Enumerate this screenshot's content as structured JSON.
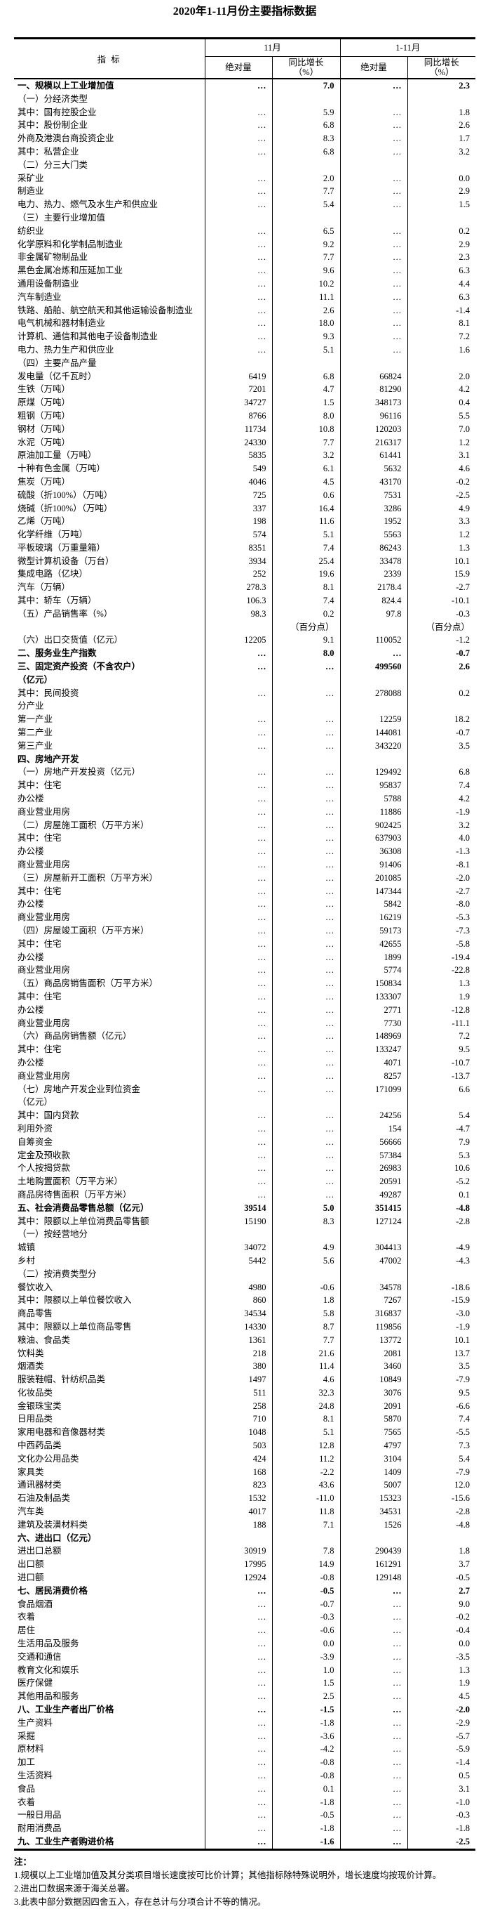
{
  "title": "2020年1-11月份主要指标数据",
  "table": {
    "header": {
      "indicator": "指  标",
      "periods": [
        "11月",
        "1-11月"
      ],
      "abs": "绝对量",
      "yoy": "同比增长\n（%）"
    },
    "rows": [
      {
        "l": "一、规模以上工业增加值",
        "v": [
          "…",
          "7.0",
          "…",
          "2.3"
        ],
        "b": 1
      },
      {
        "l": "（一）分经济类型",
        "v": [
          "",
          "",
          "",
          ""
        ]
      },
      {
        "l": "其中：国有控股企业",
        "v": [
          "…",
          "5.9",
          "…",
          "1.8"
        ]
      },
      {
        "l": "其中：股份制企业",
        "v": [
          "…",
          "6.8",
          "…",
          "2.6"
        ]
      },
      {
        "l": "外商及港澳台商投资企业",
        "v": [
          "…",
          "8.3",
          "…",
          "1.7"
        ],
        "i": 2
      },
      {
        "l": "其中：私营企业",
        "v": [
          "…",
          "6.8",
          "…",
          "3.2"
        ]
      },
      {
        "l": "（二）分三大门类",
        "v": [
          "",
          "",
          "",
          ""
        ]
      },
      {
        "l": "采矿业",
        "v": [
          "…",
          "2.0",
          "…",
          "0.0"
        ]
      },
      {
        "l": "制造业",
        "v": [
          "…",
          "7.7",
          "…",
          "2.9"
        ]
      },
      {
        "l": "电力、热力、燃气及水生产和供应业",
        "v": [
          "…",
          "5.4",
          "…",
          "1.5"
        ]
      },
      {
        "l": "（三）主要行业增加值",
        "v": [
          "",
          "",
          "",
          ""
        ]
      },
      {
        "l": "纺织业",
        "v": [
          "…",
          "6.5",
          "…",
          "0.2"
        ]
      },
      {
        "l": "化学原料和化学制品制造业",
        "v": [
          "…",
          "9.2",
          "…",
          "2.9"
        ]
      },
      {
        "l": "非金属矿物制品业",
        "v": [
          "…",
          "7.7",
          "…",
          "2.3"
        ]
      },
      {
        "l": "黑色金属冶炼和压延加工业",
        "v": [
          "…",
          "9.6",
          "…",
          "6.3"
        ]
      },
      {
        "l": "通用设备制造业",
        "v": [
          "…",
          "10.2",
          "…",
          "4.4"
        ]
      },
      {
        "l": "汽车制造业",
        "v": [
          "…",
          "11.1",
          "…",
          "6.3"
        ]
      },
      {
        "l": "铁路、船舶、航空航天和其他运输设备制造业",
        "v": [
          "…",
          "2.6",
          "…",
          "-1.4"
        ]
      },
      {
        "l": "电气机械和器材制造业",
        "v": [
          "…",
          "18.0",
          "…",
          "8.1"
        ]
      },
      {
        "l": "计算机、通信和其他电子设备制造业",
        "v": [
          "…",
          "9.3",
          "…",
          "7.2"
        ]
      },
      {
        "l": "电力、热力生产和供应业",
        "v": [
          "…",
          "5.1",
          "…",
          "1.6"
        ]
      },
      {
        "l": "（四）主要产品产量",
        "v": [
          "",
          "",
          "",
          ""
        ]
      },
      {
        "l": "发电量（亿千瓦时）",
        "v": [
          "6419",
          "6.8",
          "66824",
          "2.0"
        ]
      },
      {
        "l": "生铁（万吨）",
        "v": [
          "7201",
          "4.7",
          "81290",
          "4.2"
        ]
      },
      {
        "l": "原煤（万吨）",
        "v": [
          "34727",
          "1.5",
          "348173",
          "0.4"
        ]
      },
      {
        "l": "粗钢（万吨）",
        "v": [
          "8766",
          "8.0",
          "96116",
          "5.5"
        ]
      },
      {
        "l": "钢材（万吨）",
        "v": [
          "11734",
          "10.8",
          "120203",
          "7.0"
        ]
      },
      {
        "l": "水泥（万吨）",
        "v": [
          "24330",
          "7.7",
          "216317",
          "1.2"
        ]
      },
      {
        "l": "原油加工量（万吨）",
        "v": [
          "5835",
          "3.2",
          "61441",
          "3.1"
        ]
      },
      {
        "l": "十种有色金属（万吨）",
        "v": [
          "549",
          "6.1",
          "5632",
          "4.6"
        ]
      },
      {
        "l": "焦炭（万吨）",
        "v": [
          "4046",
          "4.5",
          "43170",
          "-0.2"
        ]
      },
      {
        "l": "硫酸（折100%）（万吨）",
        "v": [
          "725",
          "0.6",
          "7531",
          "-2.5"
        ]
      },
      {
        "l": "烧碱（折100%）（万吨）",
        "v": [
          "337",
          "16.4",
          "3286",
          "4.9"
        ]
      },
      {
        "l": "乙烯（万吨）",
        "v": [
          "198",
          "11.6",
          "1952",
          "3.3"
        ]
      },
      {
        "l": "化学纤维（万吨）",
        "v": [
          "574",
          "5.1",
          "5563",
          "1.2"
        ]
      },
      {
        "l": "平板玻璃（万重量箱）",
        "v": [
          "8351",
          "7.4",
          "86243",
          "1.3"
        ]
      },
      {
        "l": "微型计算机设备（万台）",
        "v": [
          "3934",
          "25.4",
          "33478",
          "10.1"
        ]
      },
      {
        "l": "集成电路（亿块）",
        "v": [
          "252",
          "19.6",
          "2339",
          "15.9"
        ]
      },
      {
        "l": "汽车（万辆）",
        "v": [
          "278.3",
          "8.1",
          "2178.4",
          "-2.7"
        ]
      },
      {
        "l": "其中：轿车（万辆）",
        "v": [
          "106.3",
          "7.4",
          "824.4",
          "-10.1"
        ]
      },
      {
        "l": "（五）产品销售率（%）",
        "v": [
          "98.3",
          "0.2\n（百分点）",
          "97.8",
          "-0.3\n（百分点）"
        ]
      },
      {
        "l": "（六）出口交货值（亿元）",
        "v": [
          "12205",
          "9.1",
          "110052",
          "-1.2"
        ]
      },
      {
        "l": "二、服务业生产指数",
        "v": [
          "…",
          "8.0",
          "…",
          "-0.7"
        ],
        "b": 1
      },
      {
        "l": "三、固定资产投资（不含农户）\n（亿元）",
        "v": [
          "…",
          "…",
          "499560",
          "2.6"
        ],
        "b": 1
      },
      {
        "l": "其中：民间投资",
        "v": [
          "…",
          "…",
          "278088",
          "0.2"
        ]
      },
      {
        "l": "分产业",
        "v": [
          "",
          "",
          "",
          ""
        ]
      },
      {
        "l": "第一产业",
        "v": [
          "…",
          "…",
          "12259",
          "18.2"
        ]
      },
      {
        "l": "第二产业",
        "v": [
          "…",
          "…",
          "144081",
          "-0.7"
        ]
      },
      {
        "l": "第三产业",
        "v": [
          "…",
          "…",
          "343220",
          "3.5"
        ]
      },
      {
        "l": "四、房地产开发",
        "v": [
          "",
          "",
          "",
          ""
        ],
        "b": 1
      },
      {
        "l": "（一）房地产开发投资（亿元）",
        "v": [
          "…",
          "…",
          "129492",
          "6.8"
        ]
      },
      {
        "l": "其中：住宅",
        "v": [
          "…",
          "…",
          "95837",
          "7.4"
        ]
      },
      {
        "l": "办公楼",
        "v": [
          "…",
          "…",
          "5788",
          "4.2"
        ],
        "i": 2
      },
      {
        "l": "商业营业用房",
        "v": [
          "…",
          "…",
          "11886",
          "-1.9"
        ],
        "i": 2
      },
      {
        "l": "（二）房屋施工面积（万平方米）",
        "v": [
          "…",
          "…",
          "902425",
          "3.2"
        ]
      },
      {
        "l": "其中：住宅",
        "v": [
          "…",
          "…",
          "637903",
          "4.0"
        ]
      },
      {
        "l": "办公楼",
        "v": [
          "…",
          "…",
          "36308",
          "-1.3"
        ],
        "i": 2
      },
      {
        "l": "商业营业用房",
        "v": [
          "…",
          "…",
          "91406",
          "-8.1"
        ],
        "i": 2
      },
      {
        "l": "（三）房屋新开工面积（万平方米）",
        "v": [
          "…",
          "…",
          "201085",
          "-2.0"
        ]
      },
      {
        "l": "其中：住宅",
        "v": [
          "…",
          "…",
          "147344",
          "-2.7"
        ]
      },
      {
        "l": "办公楼",
        "v": [
          "…",
          "…",
          "5842",
          "-8.0"
        ],
        "i": 2
      },
      {
        "l": "商业营业用房",
        "v": [
          "…",
          "…",
          "16219",
          "-5.3"
        ],
        "i": 2
      },
      {
        "l": "（四）房屋竣工面积（万平方米）",
        "v": [
          "…",
          "…",
          "59173",
          "-7.3"
        ]
      },
      {
        "l": "其中：住宅",
        "v": [
          "…",
          "…",
          "42655",
          "-5.8"
        ]
      },
      {
        "l": "办公楼",
        "v": [
          "…",
          "…",
          "1899",
          "-19.4"
        ],
        "i": 2
      },
      {
        "l": "商业营业用房",
        "v": [
          "…",
          "…",
          "5774",
          "-22.8"
        ],
        "i": 2
      },
      {
        "l": "（五）商品房销售面积（万平方米）",
        "v": [
          "…",
          "…",
          "150834",
          "1.3"
        ]
      },
      {
        "l": "其中：住宅",
        "v": [
          "…",
          "…",
          "133307",
          "1.9"
        ]
      },
      {
        "l": "办公楼",
        "v": [
          "…",
          "…",
          "2771",
          "-12.8"
        ],
        "i": 2
      },
      {
        "l": "商业营业用房",
        "v": [
          "…",
          "…",
          "7730",
          "-11.1"
        ],
        "i": 2
      },
      {
        "l": "（六）商品房销售额（亿元）",
        "v": [
          "…",
          "…",
          "148969",
          "7.2"
        ]
      },
      {
        "l": "其中：住宅",
        "v": [
          "…",
          "…",
          "133247",
          "9.5"
        ]
      },
      {
        "l": "办公楼",
        "v": [
          "…",
          "…",
          "4071",
          "-10.7"
        ],
        "i": 2
      },
      {
        "l": "商业营业用房",
        "v": [
          "…",
          "…",
          "8257",
          "-13.7"
        ],
        "i": 2
      },
      {
        "l": "（七）房地产开发企业到位资金\n（亿元）",
        "v": [
          "…",
          "…",
          "171099",
          "6.6"
        ]
      },
      {
        "l": "其中：国内贷款",
        "v": [
          "…",
          "…",
          "24256",
          "5.4"
        ]
      },
      {
        "l": "利用外资",
        "v": [
          "…",
          "…",
          "154",
          "-4.7"
        ],
        "i": 2
      },
      {
        "l": "自筹资金",
        "v": [
          "…",
          "…",
          "56666",
          "7.9"
        ],
        "i": 2
      },
      {
        "l": "定金及预收款",
        "v": [
          "…",
          "…",
          "57384",
          "5.3"
        ],
        "i": 2
      },
      {
        "l": "个人按揭贷款",
        "v": [
          "…",
          "…",
          "26983",
          "10.6"
        ],
        "i": 2
      },
      {
        "l": "土地购置面积（万平方米）",
        "v": [
          "…",
          "…",
          "20591",
          "-5.2"
        ]
      },
      {
        "l": "商品房待售面积（万平方米）",
        "v": [
          "…",
          "…",
          "49287",
          "0.1"
        ]
      },
      {
        "l": "五、社会消费品零售总额（亿元）",
        "v": [
          "39514",
          "5.0",
          "351415",
          "-4.8"
        ],
        "b": 1
      },
      {
        "l": "其中：限额以上单位消费品零售额",
        "v": [
          "15190",
          "8.3",
          "127124",
          "-2.8"
        ]
      },
      {
        "l": "（一）按经营地分",
        "v": [
          "",
          "",
          "",
          ""
        ]
      },
      {
        "l": "城镇",
        "v": [
          "34072",
          "4.9",
          "304413",
          "-4.9"
        ]
      },
      {
        "l": "乡村",
        "v": [
          "5442",
          "5.6",
          "47002",
          "-4.3"
        ]
      },
      {
        "l": "（二）按消费类型分",
        "v": [
          "",
          "",
          "",
          ""
        ]
      },
      {
        "l": "餐饮收入",
        "v": [
          "4980",
          "-0.6",
          "34578",
          "-18.6"
        ]
      },
      {
        "l": "其中：限额以上单位餐饮收入",
        "v": [
          "860",
          "1.8",
          "7267",
          "-15.9"
        ]
      },
      {
        "l": "商品零售",
        "v": [
          "34534",
          "5.8",
          "316837",
          "-3.0"
        ]
      },
      {
        "l": "其中：限额以上单位商品零售",
        "v": [
          "14330",
          "8.7",
          "119856",
          "-1.9"
        ]
      },
      {
        "l": "粮油、食品类",
        "v": [
          "1361",
          "7.7",
          "13772",
          "10.1"
        ],
        "i": 3
      },
      {
        "l": "饮料类",
        "v": [
          "218",
          "21.6",
          "2081",
          "13.7"
        ],
        "i": 3
      },
      {
        "l": "烟酒类",
        "v": [
          "380",
          "11.4",
          "3460",
          "3.5"
        ],
        "i": 3
      },
      {
        "l": "服装鞋帽、针纺织品类",
        "v": [
          "1497",
          "4.6",
          "10849",
          "-7.9"
        ],
        "i": 3
      },
      {
        "l": "化妆品类",
        "v": [
          "511",
          "32.3",
          "3076",
          "9.5"
        ],
        "i": 3
      },
      {
        "l": "金银珠宝类",
        "v": [
          "258",
          "24.8",
          "2091",
          "-6.6"
        ],
        "i": 3
      },
      {
        "l": "日用品类",
        "v": [
          "710",
          "8.1",
          "5870",
          "7.4"
        ],
        "i": 3
      },
      {
        "l": "家用电器和音像器材类",
        "v": [
          "1048",
          "5.1",
          "7565",
          "-5.5"
        ],
        "i": 3
      },
      {
        "l": "中西药品类",
        "v": [
          "503",
          "12.8",
          "4797",
          "7.3"
        ],
        "i": 3
      },
      {
        "l": "文化办公用品类",
        "v": [
          "424",
          "11.2",
          "3104",
          "5.4"
        ],
        "i": 3
      },
      {
        "l": "家具类",
        "v": [
          "168",
          "-2.2",
          "1409",
          "-7.9"
        ],
        "i": 3
      },
      {
        "l": "通讯器材类",
        "v": [
          "823",
          "43.6",
          "5007",
          "12.0"
        ],
        "i": 3
      },
      {
        "l": "石油及制品类",
        "v": [
          "1532",
          "-11.0",
          "15323",
          "-15.6"
        ],
        "i": 3
      },
      {
        "l": "汽车类",
        "v": [
          "4017",
          "11.8",
          "34531",
          "-2.8"
        ],
        "i": 3
      },
      {
        "l": "建筑及装潢材料类",
        "v": [
          "188",
          "7.1",
          "1526",
          "-4.8"
        ],
        "i": 3
      },
      {
        "l": "六、进出口（亿元）",
        "v": [
          "",
          "",
          "",
          ""
        ],
        "b": 1
      },
      {
        "l": "进出口总额",
        "v": [
          "30919",
          "7.8",
          "290439",
          "1.8"
        ]
      },
      {
        "l": "出口额",
        "v": [
          "17995",
          "14.9",
          "161291",
          "3.7"
        ]
      },
      {
        "l": "进口额",
        "v": [
          "12924",
          "-0.8",
          "129148",
          "-0.5"
        ]
      },
      {
        "l": "七、居民消费价格",
        "v": [
          "…",
          "-0.5",
          "…",
          "2.7"
        ],
        "b": 1
      },
      {
        "l": "食品烟酒",
        "v": [
          "…",
          "-0.7",
          "…",
          "9.0"
        ]
      },
      {
        "l": "衣着",
        "v": [
          "…",
          "-0.3",
          "…",
          "-0.2"
        ]
      },
      {
        "l": "居住",
        "v": [
          "…",
          "-0.6",
          "…",
          "-0.4"
        ]
      },
      {
        "l": "生活用品及服务",
        "v": [
          "…",
          "0.0",
          "…",
          "0.0"
        ]
      },
      {
        "l": "交通和通信",
        "v": [
          "…",
          "-3.9",
          "…",
          "-3.5"
        ]
      },
      {
        "l": "教育文化和娱乐",
        "v": [
          "…",
          "1.0",
          "…",
          "1.3"
        ]
      },
      {
        "l": "医疗保健",
        "v": [
          "…",
          "1.5",
          "…",
          "1.9"
        ]
      },
      {
        "l": "其他用品和服务",
        "v": [
          "…",
          "2.5",
          "…",
          "4.5"
        ]
      },
      {
        "l": "八、工业生产者出厂价格",
        "v": [
          "…",
          "-1.5",
          "…",
          "-2.0"
        ],
        "b": 1
      },
      {
        "l": "生产资料",
        "v": [
          "…",
          "-1.8",
          "…",
          "-2.9"
        ]
      },
      {
        "l": "采掘",
        "v": [
          "…",
          "-3.6",
          "…",
          "-5.7"
        ],
        "i": 1
      },
      {
        "l": "原材料",
        "v": [
          "…",
          "-4.2",
          "…",
          "-5.9"
        ],
        "i": 1
      },
      {
        "l": "加工",
        "v": [
          "…",
          "-0.8",
          "…",
          "-1.4"
        ],
        "i": 1
      },
      {
        "l": "生活资料",
        "v": [
          "…",
          "-0.8",
          "…",
          "0.5"
        ]
      },
      {
        "l": "食品",
        "v": [
          "…",
          "0.1",
          "…",
          "3.1"
        ],
        "i": 1
      },
      {
        "l": "衣着",
        "v": [
          "…",
          "-1.8",
          "…",
          "-1.0"
        ],
        "i": 1
      },
      {
        "l": "一般日用品",
        "v": [
          "…",
          "-0.5",
          "…",
          "-0.3"
        ],
        "i": 1
      },
      {
        "l": "耐用消费品",
        "v": [
          "…",
          "-1.8",
          "…",
          "-1.8"
        ],
        "i": 1
      },
      {
        "l": "九、工业生产者购进价格",
        "v": [
          "…",
          "-1.6",
          "…",
          "-2.5"
        ],
        "b": 1
      }
    ]
  },
  "notes": {
    "label": "注：",
    "items": [
      "1.规模以上工业增加值及其分类项目增长速度按可比价计算；其他指标除特殊说明外，增长速度均按现价计算。",
      "2.进出口数据来源于海关总署。",
      "3.此表中部分数据因四舍五入，存在总计与分项合计不等的情况。"
    ]
  }
}
